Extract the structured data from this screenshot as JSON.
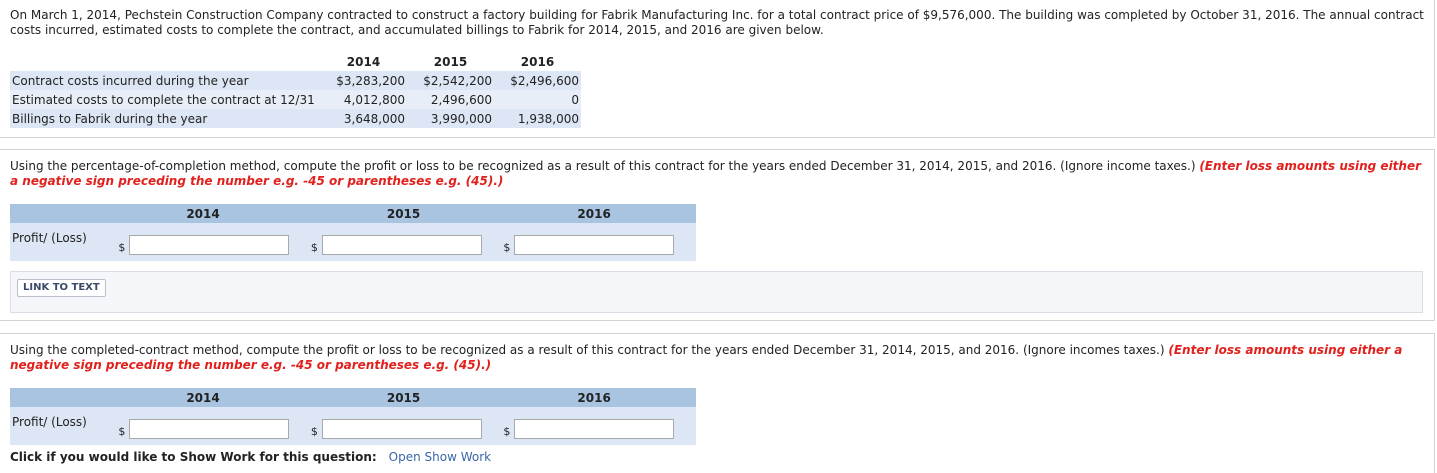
{
  "intro": {
    "text": "On March 1, 2014, Pechstein Construction Company contracted to construct a factory building for Fabrik Manufacturing Inc. for a total contract price of $9,576,000. The building was completed by October 31, 2016. The annual contract costs incurred, estimated costs to complete the contract, and accumulated billings to Fabrik for 2014, 2015, and 2016 are given below."
  },
  "data_table": {
    "years": [
      "2014",
      "2015",
      "2016"
    ],
    "rows": [
      {
        "label": "Contract costs incurred during the year",
        "values": [
          "$3,283,200",
          "$2,542,200",
          "$2,496,600"
        ]
      },
      {
        "label": "Estimated costs to complete the contract at 12/31",
        "values": [
          "4,012,800",
          "2,496,600",
          "0"
        ]
      },
      {
        "label": "Billings to Fabrik during the year",
        "values": [
          "3,648,000",
          "3,990,000",
          "1,938,000"
        ]
      }
    ]
  },
  "question1": {
    "text": "Using the percentage-of-completion method, compute the profit or loss to be recognized as a result of this contract for the years ended December 31, 2014, 2015, and 2016. (Ignore income taxes.) ",
    "instruction": "(Enter loss amounts using either a negative sign preceding the number e.g. -45 or parentheses e.g. (45).)",
    "years": [
      "2014",
      "2015",
      "2016"
    ],
    "row_label": "Profit/ (Loss)",
    "currency": "$",
    "inputs": [
      "",
      "",
      ""
    ]
  },
  "link_to_text": "LINK TO TEXT",
  "question2": {
    "text": "Using the completed-contract method, compute the profit or loss to be recognized as a result of this contract for the years ended December 31, 2014, 2015, and 2016. (Ignore incomes taxes.) ",
    "instruction": "(Enter loss amounts using either a negative sign preceding the number e.g. -45 or parentheses e.g. (45).)",
    "years": [
      "2014",
      "2015",
      "2016"
    ],
    "row_label": "Profit/ (Loss)",
    "currency": "$",
    "inputs": [
      "",
      "",
      ""
    ]
  },
  "show_work": {
    "prompt": "Click if you would like to Show Work for this question:",
    "link": "Open Show Work"
  }
}
